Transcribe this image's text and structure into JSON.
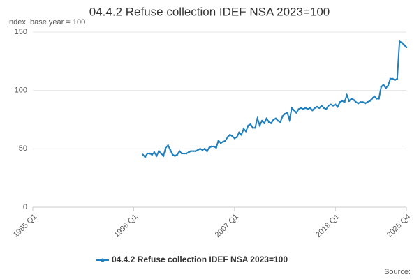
{
  "chart_data": {
    "type": "line",
    "title": "04.4.2 Refuse collection IDEF NSA 2023=100",
    "subtitle": "Index, base year = 100",
    "source": "Source:",
    "categories": [
      "1985 Q1",
      null,
      null,
      null,
      null,
      null,
      null,
      null,
      null,
      null,
      null,
      null,
      null,
      null,
      null,
      null,
      null,
      null,
      null,
      null,
      null,
      null,
      null,
      null,
      null,
      null,
      null,
      null,
      null,
      null,
      null,
      null,
      null,
      null,
      null,
      null,
      null,
      null,
      null,
      null,
      null,
      null,
      null,
      null,
      "1996 Q1",
      null,
      null,
      null,
      null,
      null,
      null,
      null,
      null,
      null,
      null,
      null,
      null,
      null,
      null,
      null,
      null,
      null,
      null,
      null,
      null,
      null,
      null,
      null,
      null,
      null,
      null,
      null,
      null,
      null,
      null,
      null,
      null,
      null,
      null,
      null,
      null,
      null,
      null,
      null,
      null,
      null,
      null,
      null,
      "2007 Q1",
      null,
      null,
      null,
      null,
      null,
      null,
      null,
      null,
      null,
      null,
      null,
      null,
      null,
      null,
      null,
      null,
      null,
      null,
      null,
      null,
      null,
      null,
      null,
      null,
      null,
      null,
      null,
      null,
      null,
      null,
      null,
      null,
      null,
      null,
      null,
      null,
      null,
      null,
      null,
      null,
      null,
      null,
      null,
      "2018 Q1",
      null,
      null,
      null,
      null,
      null,
      null,
      null,
      null,
      null,
      null,
      null,
      null,
      null,
      null,
      null,
      null,
      null,
      null,
      null,
      null,
      null,
      null,
      null,
      null,
      null,
      null,
      null,
      null,
      null,
      null,
      "2025 Q4"
    ],
    "series": [
      {
        "name": "04.4.2 Refuse collection IDEF NSA 2023=100",
        "color": "#1f7fbf",
        "values": [
          null,
          null,
          null,
          null,
          null,
          null,
          null,
          null,
          null,
          null,
          null,
          null,
          null,
          null,
          null,
          null,
          null,
          null,
          null,
          null,
          null,
          null,
          null,
          null,
          null,
          null,
          null,
          null,
          null,
          null,
          null,
          null,
          null,
          null,
          null,
          null,
          null,
          null,
          null,
          null,
          null,
          null,
          null,
          null,
          null,
          null,
          null,
          null,
          45,
          43,
          46,
          46,
          45,
          47,
          44,
          48,
          46,
          44,
          51,
          53,
          49,
          45,
          44,
          45,
          48,
          46,
          46,
          46,
          47,
          48,
          48,
          48,
          49,
          50,
          49,
          50,
          48,
          51,
          52,
          52,
          51,
          57,
          55,
          56,
          57,
          60,
          62,
          61,
          59,
          60,
          64,
          62,
          67,
          65,
          70,
          71,
          68,
          68,
          76,
          70,
          74,
          72,
          76,
          73,
          72,
          75,
          76,
          74,
          73,
          78,
          80,
          81,
          75,
          85,
          83,
          81,
          84,
          85,
          84,
          85,
          84,
          85,
          83,
          85,
          86,
          85,
          87,
          85,
          84,
          87,
          88,
          87,
          88,
          86,
          90,
          91,
          90,
          96,
          91,
          93,
          92,
          90,
          89,
          90,
          90,
          89,
          90,
          91,
          93,
          95,
          93,
          93,
          103,
          105,
          102,
          104,
          110,
          110,
          109,
          110,
          142,
          141,
          139,
          137
        ]
      }
    ],
    "ylim": [
      0,
      150
    ],
    "yticks": [
      0,
      50,
      100,
      150
    ],
    "grid": true
  }
}
